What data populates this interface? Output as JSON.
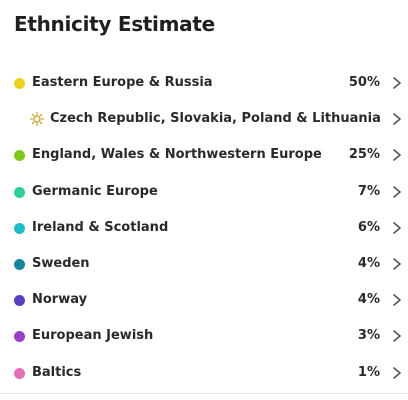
{
  "title": "Ethnicity Estimate",
  "regions": [
    {
      "name": "Eastern Europe & Russia",
      "percent": "50%",
      "color": "#e8d21f",
      "icon": "dot"
    },
    {
      "name": "Czech Republic, Slovakia, Poland & Lithuania",
      "percent": "",
      "color": "#c9a227",
      "icon": "sun-icon",
      "sub": true
    },
    {
      "name": "England, Wales & Northwestern Europe",
      "percent": "25%",
      "color": "#7cc91c",
      "icon": "dot"
    },
    {
      "name": "Germanic Europe",
      "percent": "7%",
      "color": "#2ecf9a",
      "icon": "dot"
    },
    {
      "name": "Ireland & Scotland",
      "percent": "6%",
      "color": "#1fbcc7",
      "icon": "dot"
    },
    {
      "name": "Sweden",
      "percent": "4%",
      "color": "#17859a",
      "icon": "dot"
    },
    {
      "name": "Norway",
      "percent": "4%",
      "color": "#5a3fc0",
      "icon": "dot"
    },
    {
      "name": "European Jewish",
      "percent": "3%",
      "color": "#9b3fc9",
      "icon": "dot"
    },
    {
      "name": "Baltics",
      "percent": "1%",
      "color": "#e56fb6",
      "icon": "dot"
    }
  ],
  "chevron_icon": "chevron-right-icon"
}
